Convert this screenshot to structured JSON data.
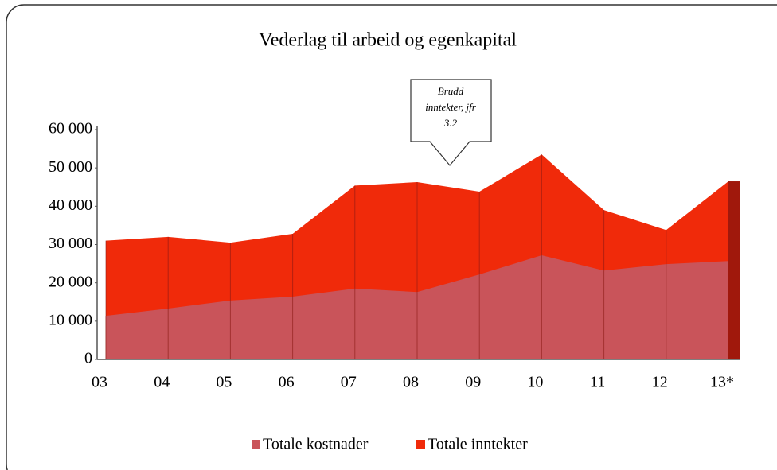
{
  "chart_data": {
    "type": "area",
    "title": "Vederlag til arbeid og egenkapital",
    "annotation": [
      "Brudd",
      "inntekter, jfr",
      "3.2"
    ],
    "categories": [
      "03",
      "04",
      "05",
      "06",
      "07",
      "08",
      "09",
      "10",
      "11",
      "12",
      "13*"
    ],
    "series": [
      {
        "name": "Totale kostnader",
        "color": "#c9545a",
        "values": [
          11400,
          13300,
          15400,
          16400,
          18500,
          17600,
          22200,
          27200,
          23200,
          24900,
          25700
        ]
      },
      {
        "name": "Totale inntekter",
        "color": "#f02a0a",
        "values": [
          31000,
          32000,
          30500,
          32800,
          45400,
          46300,
          43800,
          53500,
          39000,
          33800,
          46500
        ]
      }
    ],
    "ylim": [
      0,
      60000
    ],
    "yticks": [
      0,
      {
        "value": 10000,
        "label": "10 000"
      },
      {
        "value": 20000,
        "label": "20 000"
      },
      {
        "value": 30000,
        "label": "30 000"
      },
      {
        "value": 40000,
        "label": "40 000"
      },
      {
        "value": 50000,
        "label": "50 000"
      },
      {
        "value": 60000,
        "label": "60 000"
      }
    ],
    "legend": "bottom"
  }
}
